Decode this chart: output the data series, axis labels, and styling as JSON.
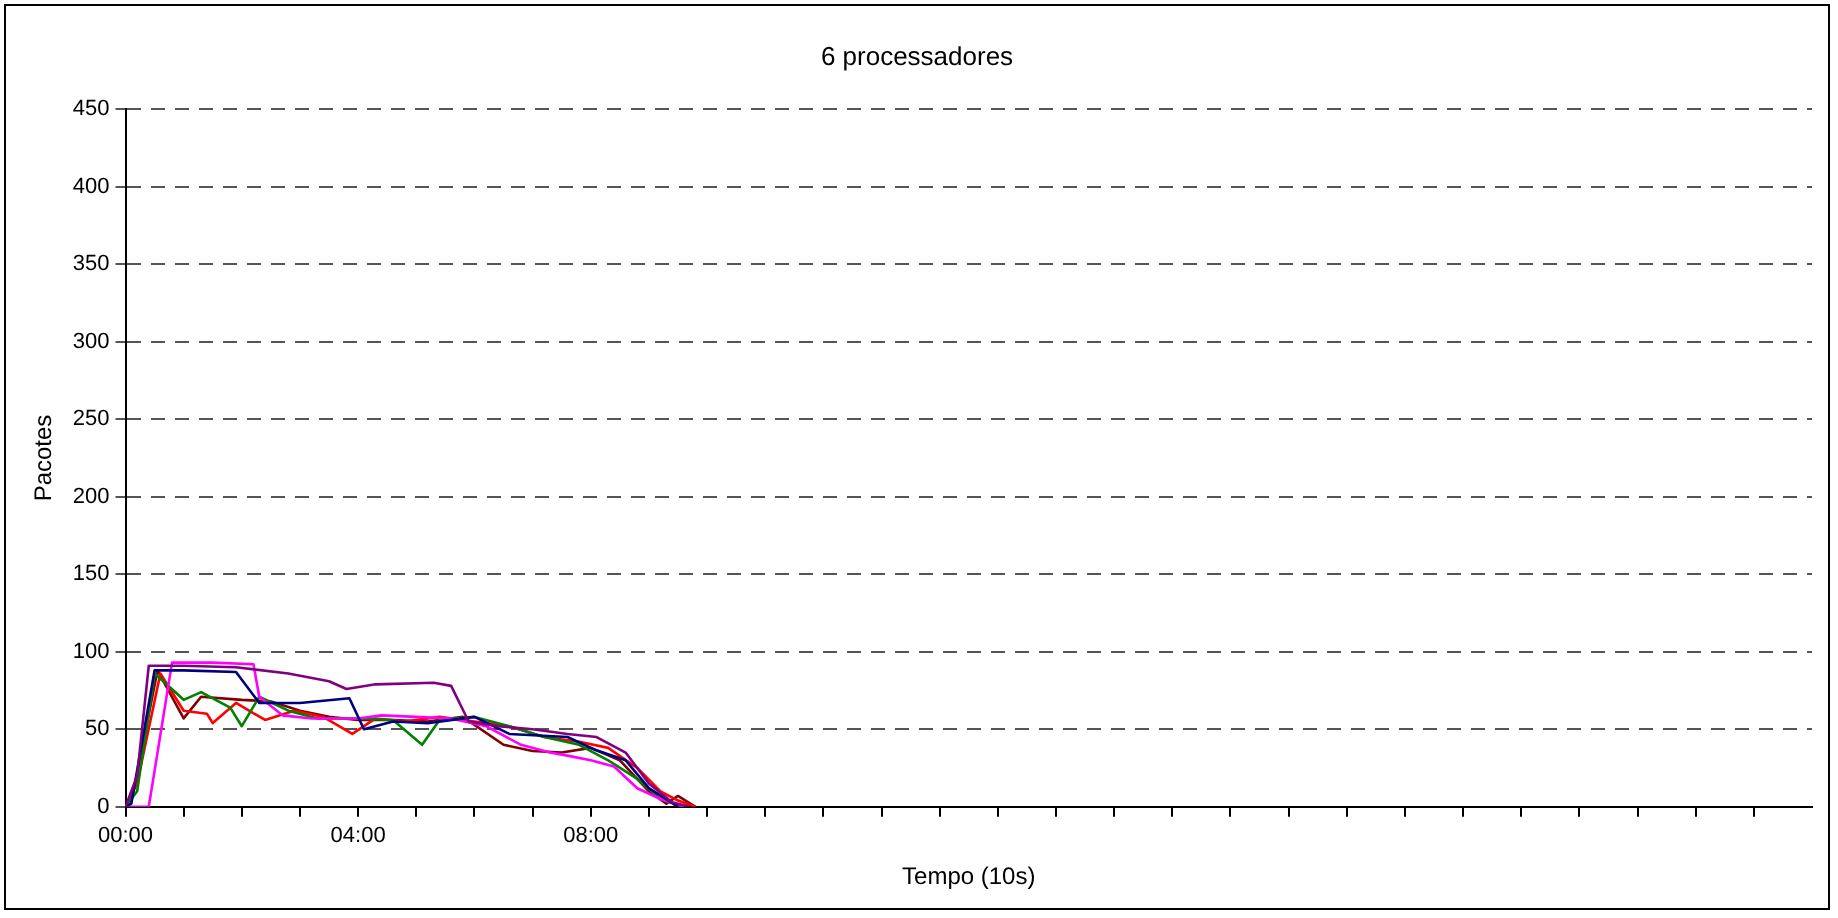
{
  "chart_data": {
    "type": "line",
    "title": "6 processadores",
    "xlabel": "Tempo (10s)",
    "ylabel": "Pacotes",
    "xlim": [
      0,
      29
    ],
    "xticks": [
      {
        "value": 0,
        "label": "00:00"
      },
      {
        "value": 1,
        "label": null
      },
      {
        "value": 2,
        "label": null
      },
      {
        "value": 3,
        "label": null
      },
      {
        "value": 4,
        "label": "04:00"
      },
      {
        "value": 5,
        "label": null
      },
      {
        "value": 6,
        "label": null
      },
      {
        "value": 7,
        "label": null
      },
      {
        "value": 8,
        "label": "08:00"
      },
      {
        "value": 9,
        "label": null
      },
      {
        "value": 10,
        "label": null
      },
      {
        "value": 11,
        "label": null
      },
      {
        "value": 12,
        "label": null
      },
      {
        "value": 13,
        "label": null
      },
      {
        "value": 14,
        "label": null
      },
      {
        "value": 15,
        "label": null
      },
      {
        "value": 16,
        "label": null
      },
      {
        "value": 17,
        "label": null
      },
      {
        "value": 18,
        "label": null
      },
      {
        "value": 19,
        "label": null
      },
      {
        "value": 20,
        "label": null
      },
      {
        "value": 21,
        "label": null
      },
      {
        "value": 22,
        "label": null
      },
      {
        "value": 23,
        "label": null
      },
      {
        "value": 24,
        "label": null
      },
      {
        "value": 25,
        "label": null
      },
      {
        "value": 26,
        "label": null
      },
      {
        "value": 27,
        "label": null
      },
      {
        "value": 28,
        "label": null
      }
    ],
    "ylim": [
      0,
      450
    ],
    "yticks": [
      0,
      50,
      100,
      150,
      200,
      250,
      300,
      350,
      400,
      450
    ],
    "grid": "y",
    "legend": false,
    "marker": "none",
    "line_style": "solid",
    "series": [
      {
        "color": "#800080",
        "x": [
          0,
          0.2,
          0.4,
          1,
          1.9,
          2.8,
          3.5,
          3.8,
          4.3,
          5.3,
          5.6,
          5.9,
          6.4,
          7,
          7.6,
          8.1,
          8.6,
          9,
          9.4,
          9.7
        ],
        "values": [
          0,
          20,
          91,
          91,
          90,
          86,
          81,
          76,
          79,
          80,
          78,
          55,
          52,
          50,
          47,
          45,
          35,
          15,
          3,
          0
        ]
      },
      {
        "color": "#000080",
        "x": [
          0,
          0.1,
          0.5,
          1,
          1.9,
          2.3,
          3,
          3.85,
          4.1,
          4.6,
          5.2,
          6,
          6.6,
          7.6,
          8.06,
          8.6,
          9,
          9.5
        ],
        "values": [
          0,
          2,
          88,
          88,
          87,
          67,
          67,
          70,
          50,
          55,
          54,
          58,
          47,
          45,
          37,
          30,
          12,
          0
        ]
      },
      {
        "color": "#ff00ff",
        "x": [
          0,
          0.4,
          0.8,
          1.5,
          2.2,
          2.3,
          2.7,
          3.2,
          4,
          4.4,
          5,
          5.6,
          6.2,
          6.8,
          7.3,
          7.6,
          8,
          8.4,
          8.8,
          9.2,
          9.6
        ],
        "values": [
          0,
          0,
          93,
          93,
          92,
          71,
          59,
          57,
          57,
          59,
          58,
          57,
          52,
          40,
          35,
          33,
          30,
          26,
          12,
          5,
          0
        ]
      },
      {
        "color": "#008000",
        "x": [
          0,
          0.2,
          0.5,
          1,
          1.3,
          1.8,
          2,
          2.3,
          2.8,
          3.3,
          4,
          4.6,
          5.1,
          5.4,
          6,
          6.6,
          7.2,
          7.8,
          8.3,
          8.8,
          9.2,
          9.6
        ],
        "values": [
          0,
          10,
          86,
          69,
          74,
          64,
          52,
          71,
          62,
          57,
          57,
          56,
          40,
          56,
          58,
          52,
          45,
          40,
          30,
          18,
          5,
          0
        ]
      },
      {
        "color": "#ff0000",
        "x": [
          0,
          0.2,
          0.6,
          1,
          1.4,
          1.5,
          1.9,
          2.4,
          2.9,
          3.4,
          3.9,
          4.3,
          4.8,
          5.4,
          6,
          6.6,
          7.2,
          7.8,
          8.3,
          8.8,
          9.2,
          9.5,
          9.8
        ],
        "values": [
          0,
          15,
          86,
          62,
          60,
          54,
          67,
          56,
          62,
          58,
          47,
          57,
          55,
          58,
          55,
          52,
          45,
          42,
          38,
          25,
          10,
          4,
          0
        ]
      },
      {
        "color": "#800000",
        "x": [
          0,
          0.15,
          0.55,
          1,
          1.3,
          2,
          2.5,
          3,
          3.5,
          4,
          4.6,
          5.2,
          5.8,
          6.5,
          7,
          7.5,
          8,
          8.5,
          9,
          9.3,
          9.5,
          9.8
        ],
        "values": [
          0,
          12,
          88,
          57,
          71,
          69,
          68,
          62,
          58,
          56,
          56,
          55,
          58,
          40,
          36,
          35,
          38,
          30,
          10,
          2,
          7,
          0
        ]
      }
    ]
  }
}
